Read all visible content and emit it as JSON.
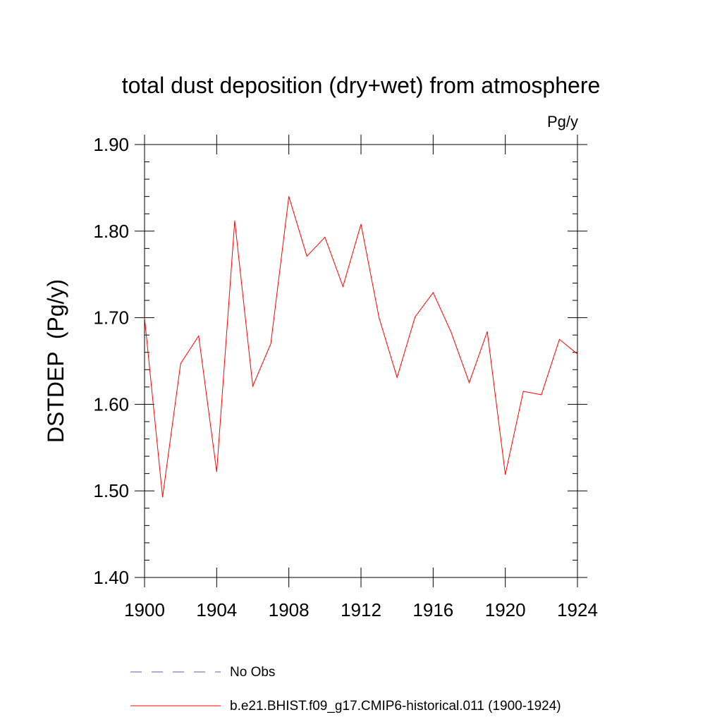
{
  "chart_data": {
    "type": "line",
    "title": "total dust deposition (dry+wet) from atmosphere",
    "units_label": "Pg/y",
    "ylabel": "DSTDEP  (Pg/y)",
    "xlabel": "",
    "xlim": [
      1900,
      1924
    ],
    "ylim": [
      1.4,
      1.9
    ],
    "x_ticks": [
      1900,
      1904,
      1908,
      1912,
      1916,
      1920,
      1924
    ],
    "x_tick_labels": [
      "1900",
      "1904",
      "1908",
      "1912",
      "1916",
      "1920",
      "1924"
    ],
    "y_ticks": [
      1.4,
      1.5,
      1.6,
      1.7,
      1.8,
      1.9
    ],
    "y_tick_labels": [
      "1.40",
      "1.50",
      "1.60",
      "1.70",
      "1.80",
      "1.90"
    ],
    "grid": false,
    "legend_position": "bottom",
    "series": [
      {
        "name": "No Obs",
        "color": "#5a5aa8",
        "style": "dashed",
        "x": [],
        "values": []
      },
      {
        "name": "b.e21.BHIST.f09_g17.CMIP6-historical.011 (1900-1924)",
        "color": "#ff0000",
        "style": "solid",
        "x": [
          1900,
          1901,
          1902,
          1903,
          1904,
          1905,
          1906,
          1907,
          1908,
          1909,
          1910,
          1911,
          1912,
          1913,
          1914,
          1915,
          1916,
          1917,
          1918,
          1919,
          1920,
          1921,
          1922,
          1923,
          1924
        ],
        "values": [
          1.7,
          1.493,
          1.647,
          1.679,
          1.522,
          1.812,
          1.621,
          1.67,
          1.84,
          1.771,
          1.793,
          1.736,
          1.808,
          1.7,
          1.631,
          1.701,
          1.729,
          1.683,
          1.625,
          1.684,
          1.519,
          1.615,
          1.611,
          1.675,
          1.658
        ]
      }
    ]
  }
}
